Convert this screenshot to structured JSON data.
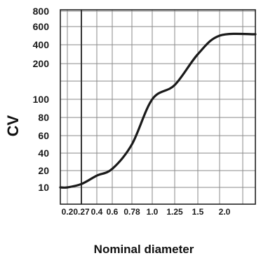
{
  "chart_data": {
    "type": "line",
    "xlabel": "Nominal diameter",
    "ylabel": "CV",
    "x_tick_labels": [
      "0.2",
      "0.27",
      "0.4",
      "0.6",
      "0.78",
      "1.0",
      "1.25",
      "1.5",
      "2.0"
    ],
    "y_tick_labels": [
      "10",
      "20",
      "40",
      "60",
      "80",
      "100",
      "200",
      "400",
      "600",
      "800"
    ],
    "axis_scale": "nonlinear categorical (equally spaced ticks)",
    "grid": true,
    "highlight_line_x": "0.27",
    "series": [
      {
        "points": [
          {
            "x": 0.2,
            "y": 10
          },
          {
            "x": 0.27,
            "y": 12
          },
          {
            "x": 0.4,
            "y": 17
          },
          {
            "x": 0.6,
            "y": 22
          },
          {
            "x": 0.78,
            "y": 50
          },
          {
            "x": 1.0,
            "y": 100
          },
          {
            "x": 1.25,
            "y": 140
          },
          {
            "x": 1.5,
            "y": 300
          },
          {
            "x": 2.0,
            "y": 500
          }
        ],
        "color": "#1a1a1a"
      }
    ]
  }
}
